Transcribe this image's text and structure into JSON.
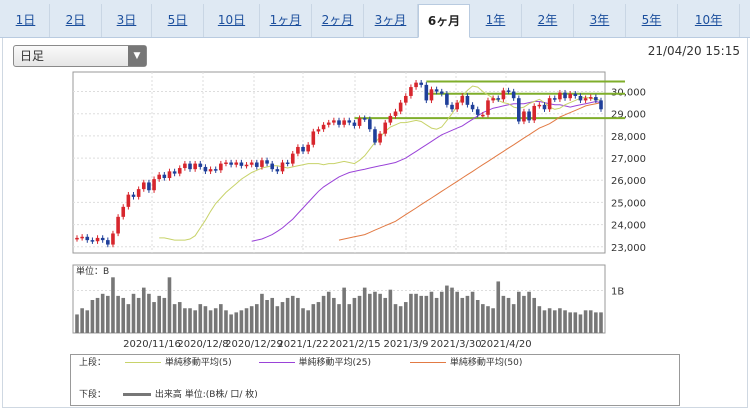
{
  "tabs": [
    "1日",
    "2日",
    "3日",
    "5日",
    "10日",
    "1ヶ月",
    "2ヶ月",
    "3ヶ月",
    "6ヶ月",
    "1年",
    "2年",
    "3年",
    "5年",
    "10年"
  ],
  "active_tab": "6ヶ月",
  "period_select": {
    "value": "日足"
  },
  "timestamp": "21/04/20 15:15",
  "colors": {
    "up": "#d7262d",
    "down": "#1f3f9a",
    "ma5": "#c8d36a",
    "ma25": "#9a43d8",
    "ma50": "#e27a44",
    "trend": "#7fae2b",
    "volume": "#777777"
  },
  "chart_data": {
    "type": "candlestick",
    "price_axis": {
      "ticks": [
        23000,
        24000,
        25000,
        26000,
        27000,
        28000,
        29000,
        30000
      ],
      "labels": [
        "23,000",
        "24,000",
        "25,000",
        "26,000",
        "27,000",
        "28,000",
        "29,000",
        "30,000"
      ],
      "ylim": [
        22900,
        30700
      ]
    },
    "x_labels": [
      "2020/11/16",
      "2020/12/8",
      "2020/12/29",
      "2021/1/22",
      "2021/2/15",
      "2021/3/9",
      "2021/3/30",
      "2021/4/20"
    ],
    "close": [
      23400,
      23450,
      23300,
      23250,
      23400,
      23300,
      23100,
      23600,
      24350,
      24800,
      25350,
      25250,
      25600,
      25900,
      25550,
      26050,
      26250,
      26100,
      26400,
      26300,
      26550,
      26750,
      26500,
      26750,
      26600,
      26400,
      26500,
      26450,
      26750,
      26800,
      26700,
      26800,
      26650,
      26700,
      26800,
      26600,
      26900,
      26750,
      26500,
      26400,
      26800,
      26750,
      27200,
      27500,
      27300,
      27600,
      28200,
      28300,
      28500,
      28600,
      28700,
      28500,
      28700,
      28600,
      28450,
      28800,
      28750,
      28300,
      27700,
      28100,
      28600,
      28900,
      29100,
      29500,
      29800,
      30200,
      30400,
      30300,
      29600,
      30100,
      30000,
      29900,
      29400,
      29200,
      29500,
      29800,
      29400,
      29200,
      28950,
      28950,
      29600,
      29700,
      29650,
      30050,
      30000,
      29700,
      28650,
      29100,
      28700,
      29350,
      29400,
      29200,
      29700,
      29650,
      29950,
      29700,
      29900,
      29800,
      29600,
      29700,
      29750,
      29600,
      29200
    ],
    "ma5_line": [
      23400,
      23400,
      23350,
      23300,
      23300,
      23300,
      23350,
      23500,
      23850,
      24200,
      24600,
      24950,
      25200,
      25450,
      25650,
      25850,
      26050,
      26200,
      26350,
      26450,
      26550,
      26600,
      26650,
      26650,
      26600,
      26550,
      26600,
      26650,
      26700,
      26750,
      26750,
      26750,
      26700,
      26750,
      26750,
      26800,
      26850,
      26800,
      26750,
      26900,
      27100,
      27400,
      27700,
      27950,
      28200,
      28400,
      28500,
      28600,
      28600,
      28650,
      28700,
      28650,
      28500,
      28350,
      28300,
      28400,
      28700,
      29000,
      29350,
      29750,
      30050,
      30250,
      30200,
      30000,
      29850,
      29700,
      29600,
      29500,
      29450,
      29300,
      29250,
      29300,
      29450,
      29550,
      29650,
      29500,
      29300,
      29200,
      29250,
      29400,
      29500,
      29600,
      29700,
      29750,
      29700,
      29650,
      29600
    ],
    "ma25_line": [
      23250,
      23300,
      23350,
      23450,
      23550,
      23700,
      23850,
      24050,
      24250,
      24500,
      24750,
      25000,
      25250,
      25500,
      25700,
      25850,
      26000,
      26150,
      26250,
      26350,
      26400,
      26450,
      26500,
      26550,
      26600,
      26650,
      26700,
      26750,
      26800,
      26900,
      27000,
      27150,
      27300,
      27450,
      27600,
      27750,
      27900,
      28050,
      28150,
      28250,
      28350,
      28450,
      28600,
      28750,
      28900,
      29050,
      29150,
      29250,
      29300,
      29350,
      29400,
      29450,
      29450,
      29450,
      29500,
      29550,
      29550,
      29500,
      29450,
      29400,
      29400,
      29350,
      29300,
      29350,
      29400,
      29450,
      29500,
      29550,
      29500
    ],
    "ma50_line": [
      23300,
      23350,
      23400,
      23450,
      23500,
      23550,
      23650,
      23750,
      23850,
      23950,
      24050,
      24150,
      24300,
      24450,
      24600,
      24750,
      24900,
      25050,
      25200,
      25350,
      25500,
      25650,
      25800,
      25950,
      26100,
      26250,
      26400,
      26550,
      26700,
      26850,
      27000,
      27150,
      27300,
      27450,
      27600,
      27750,
      27900,
      28050,
      28200,
      28350,
      28450,
      28550,
      28700,
      28850,
      28950,
      29050,
      29150,
      29250,
      29350,
      29400,
      29450,
      29500
    ],
    "trendlines": [
      {
        "from_index": 68,
        "to_index": 102,
        "value": 30450
      },
      {
        "from_index": 68,
        "to_index": 102,
        "value": 29900
      },
      {
        "from_index": 54,
        "to_index": 102,
        "value": 28800
      }
    ],
    "volume_label": "1B",
    "volume_unit_label": "単位：B",
    "volume": [
      0.45,
      0.6,
      0.55,
      0.8,
      0.85,
      0.95,
      0.9,
      1.35,
      0.9,
      0.85,
      0.7,
      0.95,
      0.85,
      1.1,
      0.95,
      0.75,
      0.9,
      0.85,
      1.35,
      0.7,
      0.75,
      0.6,
      0.6,
      0.55,
      0.7,
      0.65,
      0.55,
      0.6,
      0.7,
      0.55,
      0.45,
      0.5,
      0.55,
      0.6,
      0.65,
      0.7,
      0.95,
      0.8,
      0.85,
      0.65,
      0.75,
      0.85,
      0.9,
      0.85,
      0.6,
      0.55,
      0.7,
      0.75,
      0.9,
      1.0,
      0.85,
      0.7,
      1.1,
      0.7,
      0.85,
      0.9,
      1.1,
      0.95,
      1.0,
      0.95,
      0.85,
      1.05,
      0.7,
      0.65,
      0.75,
      0.95,
      0.95,
      0.9,
      0.9,
      1.0,
      0.85,
      1.0,
      1.15,
      1.1,
      1.0,
      0.85,
      0.9,
      1.0,
      0.8,
      0.7,
      0.65,
      0.6,
      1.25,
      0.9,
      0.85,
      0.7,
      1.0,
      0.9,
      1.0,
      0.85,
      0.65,
      0.55,
      0.6,
      0.55,
      0.6,
      0.55,
      0.5,
      0.5,
      0.45,
      0.55,
      0.55,
      0.5,
      0.5
    ]
  },
  "legend": {
    "upper_label": "上段：",
    "lower_label": "下段：",
    "ma5": "単純移動平均(5)",
    "ma25": "単純移動平均(25)",
    "ma50": "単純移動平均(50)",
    "volume": "出来高 単位:(B株/ 口/ 枚)"
  }
}
